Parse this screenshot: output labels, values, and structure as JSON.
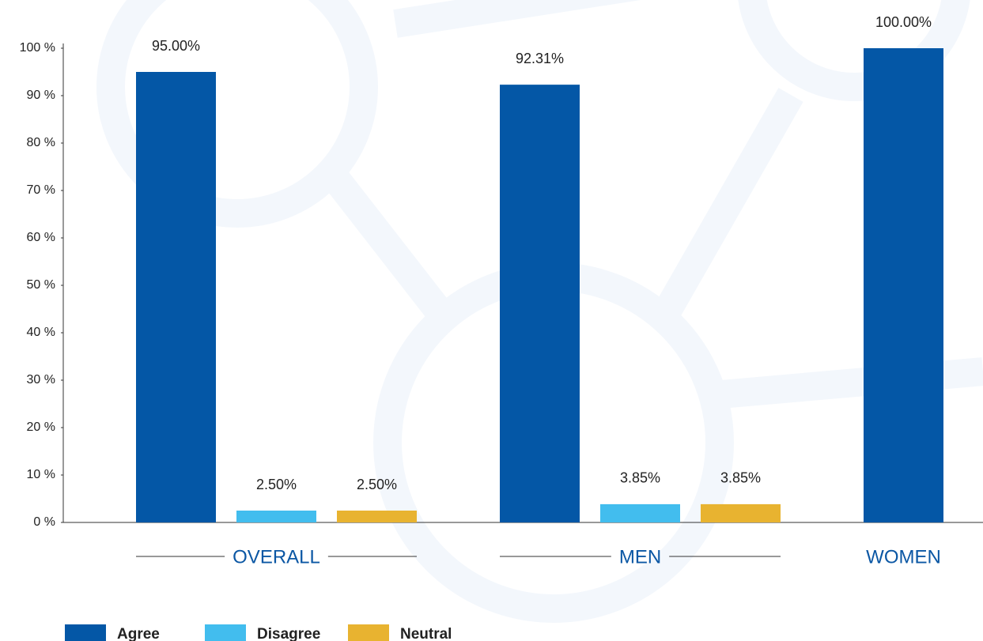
{
  "chart_data": {
    "type": "bar",
    "categories": [
      "OVERALL",
      "MEN",
      "WOMEN"
    ],
    "series": [
      {
        "name": "Agree",
        "color": "#0457a6",
        "values": [
          95,
          92.31,
          100
        ],
        "value_labels": [
          "95.00%",
          "92.31%",
          "100.00%"
        ]
      },
      {
        "name": "Disagree",
        "color": "#42bdee",
        "values": [
          2.5,
          3.85,
          null
        ],
        "value_labels": [
          "2.50%",
          "3.85%",
          null
        ]
      },
      {
        "name": "Neutral",
        "color": "#e8b330",
        "values": [
          2.5,
          3.85,
          null
        ],
        "value_labels": [
          "2.50%",
          "3.85%",
          null
        ]
      }
    ],
    "ylim": [
      0,
      100
    ],
    "yticks": [
      {
        "value": 0,
        "label": "0 %"
      },
      {
        "value": 10,
        "label": "10 %"
      },
      {
        "value": 20,
        "label": "20 %"
      },
      {
        "value": 30,
        "label": "30 %"
      },
      {
        "value": 40,
        "label": "40 %"
      },
      {
        "value": 50,
        "label": "50 %"
      },
      {
        "value": 60,
        "label": "60 %"
      },
      {
        "value": 70,
        "label": "70 %"
      },
      {
        "value": 80,
        "label": "80 %"
      },
      {
        "value": 90,
        "label": "90 %"
      },
      {
        "value": 100,
        "label": "100 %"
      }
    ],
    "legend": "bottom-left"
  }
}
